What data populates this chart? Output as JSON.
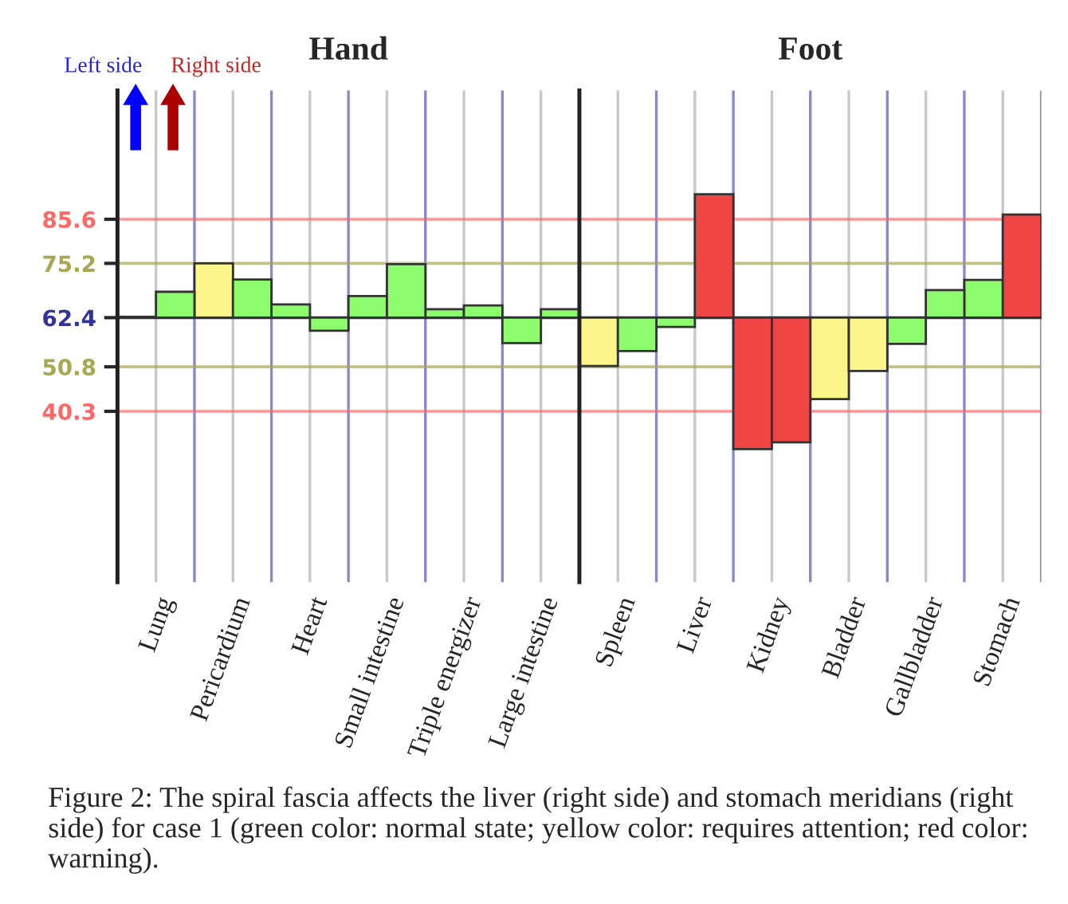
{
  "chart_data": [
    {
      "type": "bar",
      "title": "Hand",
      "categories": [
        "Lung",
        "Pericardium",
        "Heart",
        "Small intestine",
        "Triple energizer",
        "Large intestine"
      ],
      "series": [
        {
          "base": [
            62.4,
            62.4,
            62.4,
            62.4,
            62.4,
            62.4
          ],
          "values": [
            0.2,
            12.8,
            3.1,
            5.1,
            2.0,
            -6.0
          ],
          "colors": [
            "#8cfb6c",
            "#fbf58a",
            "#8cfb6c",
            "#8cfb6c",
            "#8cfb6c",
            "#8cfb6c"
          ]
        },
        {
          "base": [
            62.4,
            62.4,
            62.4,
            62.4,
            62.4,
            62.4
          ],
          "values": [
            6.1,
            9.0,
            -3.1,
            12.6,
            2.9,
            2.0
          ],
          "colors": [
            "#8cfb6c",
            "#8cfb6c",
            "#8cfb6c",
            "#8cfb6c",
            "#8cfb6c",
            "#8cfb6c"
          ]
        }
      ],
      "ylim": [
        0,
        116
      ],
      "yticks": [
        40.3,
        50.8,
        62.4,
        75.2,
        85.6
      ],
      "grid": "x",
      "ref_lines": [
        {
          "axis": "y",
          "value": 85.6,
          "color": "#ff6666"
        },
        {
          "axis": "y",
          "value": 75.2,
          "color": "#a8a850"
        },
        {
          "axis": "y",
          "value": 62.4,
          "color": "#222255"
        },
        {
          "axis": "y",
          "value": 50.8,
          "color": "#a8a850"
        },
        {
          "axis": "y",
          "value": 40.3,
          "color": "#ff6666"
        }
      ],
      "annotations": [
        "Left side",
        "Right side",
        "Figure 2: The spiral fascia affects the liver (right side) and stomach meridians (right side) for case 1 (green color: normal state; yellow color: requires attention; red color: warning)."
      ]
    },
    {
      "type": "bar",
      "title": "Foot",
      "categories": [
        "Spleen",
        "Liver",
        "Kidney",
        "Bladder",
        "Gallbladder",
        "Stomach"
      ],
      "series": [
        {
          "base": [
            62.4,
            62.4,
            62.4,
            62.4,
            62.4,
            62.4
          ],
          "values": [
            -11.4,
            -2.2,
            -31.0,
            -19.2,
            -6.2,
            8.9
          ],
          "colors": [
            "#fbf58a",
            "#8cfb6c",
            "#f04545",
            "#fbf58a",
            "#8cfb6c",
            "#8cfb6c"
          ]
        },
        {
          "base": [
            62.4,
            62.4,
            62.4,
            62.4,
            62.4,
            62.4
          ],
          "values": [
            -7.9,
            29.1,
            -29.4,
            -12.6,
            6.5,
            24.3
          ],
          "colors": [
            "#8cfb6c",
            "#f04545",
            "#f04545",
            "#fbf58a",
            "#8cfb6c",
            "#f04545"
          ]
        }
      ],
      "ylim": [
        0,
        116
      ],
      "yticks": [
        40.3,
        50.8,
        62.4,
        75.2,
        85.6
      ],
      "grid": "x",
      "tick_labels": "x",
      "ref_lines": [
        {
          "axis": "y",
          "value": 85.6,
          "color": "#ff6666"
        },
        {
          "axis": "y",
          "value": 75.2,
          "color": "#a8a850"
        },
        {
          "axis": "y",
          "value": 62.4,
          "color": "#222222"
        },
        {
          "axis": "y",
          "value": 50.8,
          "color": "#a8a850"
        },
        {
          "axis": "y",
          "value": 40.3,
          "color": "#ff6666"
        }
      ]
    }
  ]
}
